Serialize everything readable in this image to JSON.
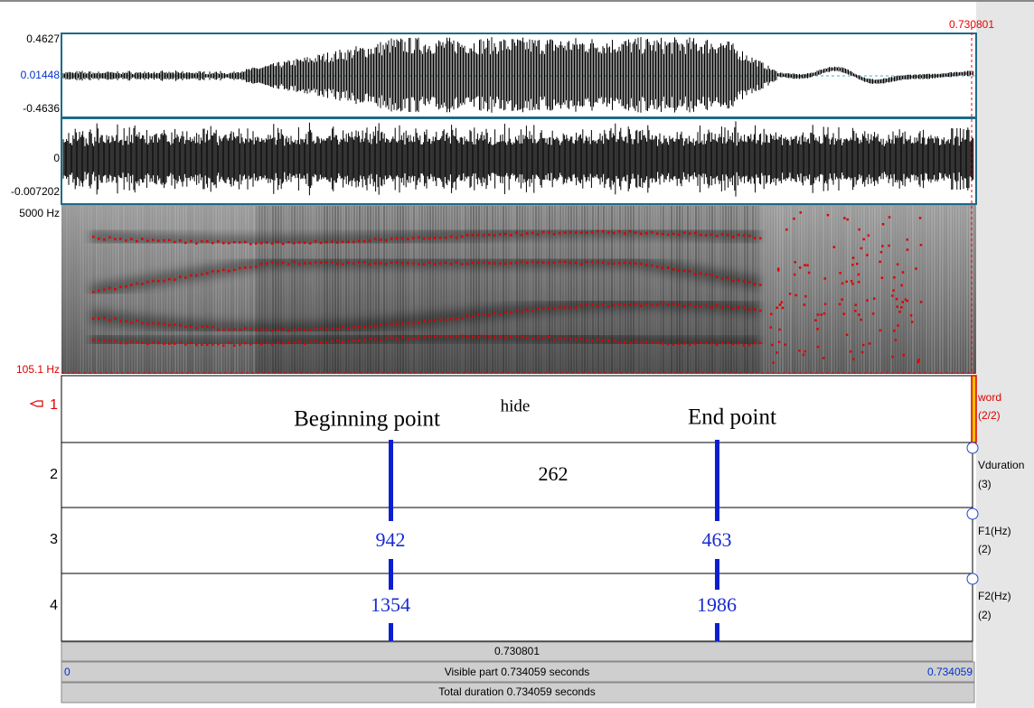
{
  "cursor_time": "0.730801",
  "waveform": {
    "max": "0.4627",
    "mid": "0.01448",
    "min": "-0.4636"
  },
  "waveform2": {
    "zero": "0",
    "min": "-0.007202"
  },
  "spectrogram": {
    "top": "5000 Hz",
    "bottom": "105.1 Hz"
  },
  "annotations": [
    "Beginning point",
    "End point"
  ],
  "tiers": [
    {
      "number": "1",
      "name": "word",
      "count": "(2/2)",
      "labels": [
        "hide"
      ]
    },
    {
      "number": "2",
      "name": "Vduration",
      "count": "(3)",
      "labels": [
        "262"
      ]
    },
    {
      "number": "3",
      "name": "F1(Hz)",
      "count": "(2)",
      "labels": [
        "942",
        "463"
      ]
    },
    {
      "number": "4",
      "name": "F2(Hz)",
      "count": "(2)",
      "labels": [
        "1354",
        "1986"
      ]
    }
  ],
  "footer": {
    "selection": "0.730801",
    "visible_start": "0",
    "visible": "Visible part 0.734059 seconds",
    "visible_end": "0.734059",
    "total": "Total duration 0.734059 seconds"
  }
}
